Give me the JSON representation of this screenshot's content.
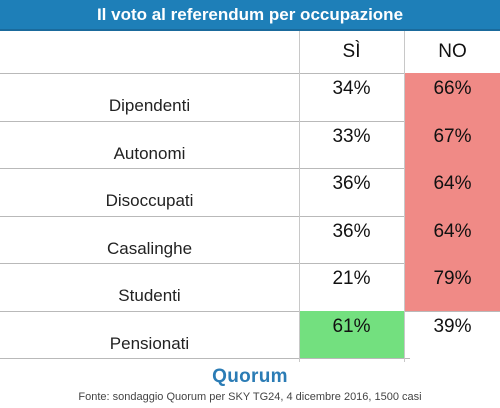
{
  "title": "Il voto al referendum per occupazione",
  "chart_data": {
    "type": "table",
    "columns": [
      "SÌ",
      "NO"
    ],
    "rows": [
      {
        "category": "Dipendenti",
        "si": "34%",
        "no": "66%",
        "si_value": 34,
        "no_value": 66,
        "highlight": "no"
      },
      {
        "category": "Autonomi",
        "si": "33%",
        "no": "67%",
        "si_value": 33,
        "no_value": 67,
        "highlight": "no"
      },
      {
        "category": "Disoccupati",
        "si": "36%",
        "no": "64%",
        "si_value": 36,
        "no_value": 64,
        "highlight": "no"
      },
      {
        "category": "Casalinghe",
        "si": "36%",
        "no": "64%",
        "si_value": 36,
        "no_value": 64,
        "highlight": "no"
      },
      {
        "category": "Studenti",
        "si": "21%",
        "no": "79%",
        "si_value": 21,
        "no_value": 79,
        "highlight": "no"
      },
      {
        "category": "Pensionati",
        "si": "61%",
        "no": "39%",
        "si_value": 61,
        "no_value": 39,
        "highlight": "si"
      }
    ]
  },
  "logo_text": "Quorum",
  "source": "Fonte: sondaggio Quorum per SKY TG24, 4 dicembre 2016, 1500 casi",
  "colors": {
    "title_bg": "#1e7fb8",
    "no_highlight": "#f08a86",
    "si_highlight": "#73e07f",
    "logo": "#2b7cb5"
  }
}
